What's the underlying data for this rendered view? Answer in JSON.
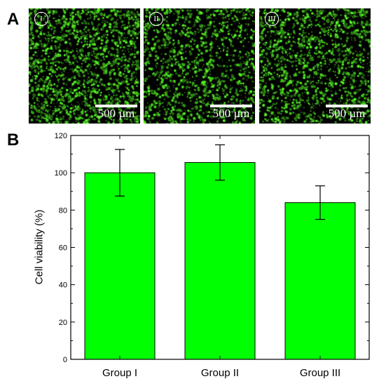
{
  "panels": {
    "a": {
      "letter": "A"
    },
    "b": {
      "letter": "B"
    }
  },
  "micrographs": [
    {
      "label": "I",
      "scale_text": "500 µm",
      "cell_density": 0.55
    },
    {
      "label": "II",
      "scale_text": "500 µm",
      "cell_density": 0.42
    },
    {
      "label": "III",
      "scale_text": "500 µm",
      "cell_density": 0.47
    }
  ],
  "chart_data": {
    "type": "bar",
    "categories": [
      "Group I",
      "Group II",
      "Group III"
    ],
    "values": [
      100,
      105.5,
      84
    ],
    "errors": [
      [
        87.5,
        112.5
      ],
      [
        96,
        115
      ],
      [
        75,
        93
      ]
    ],
    "xlabel": "",
    "ylabel": "Cell viability (%)",
    "ylim": [
      0,
      120
    ],
    "yticks": [
      0,
      20,
      40,
      60,
      80,
      100,
      120
    ],
    "grid": false,
    "bar_color": "#00ff00",
    "bar_edge_color": "#000000"
  }
}
